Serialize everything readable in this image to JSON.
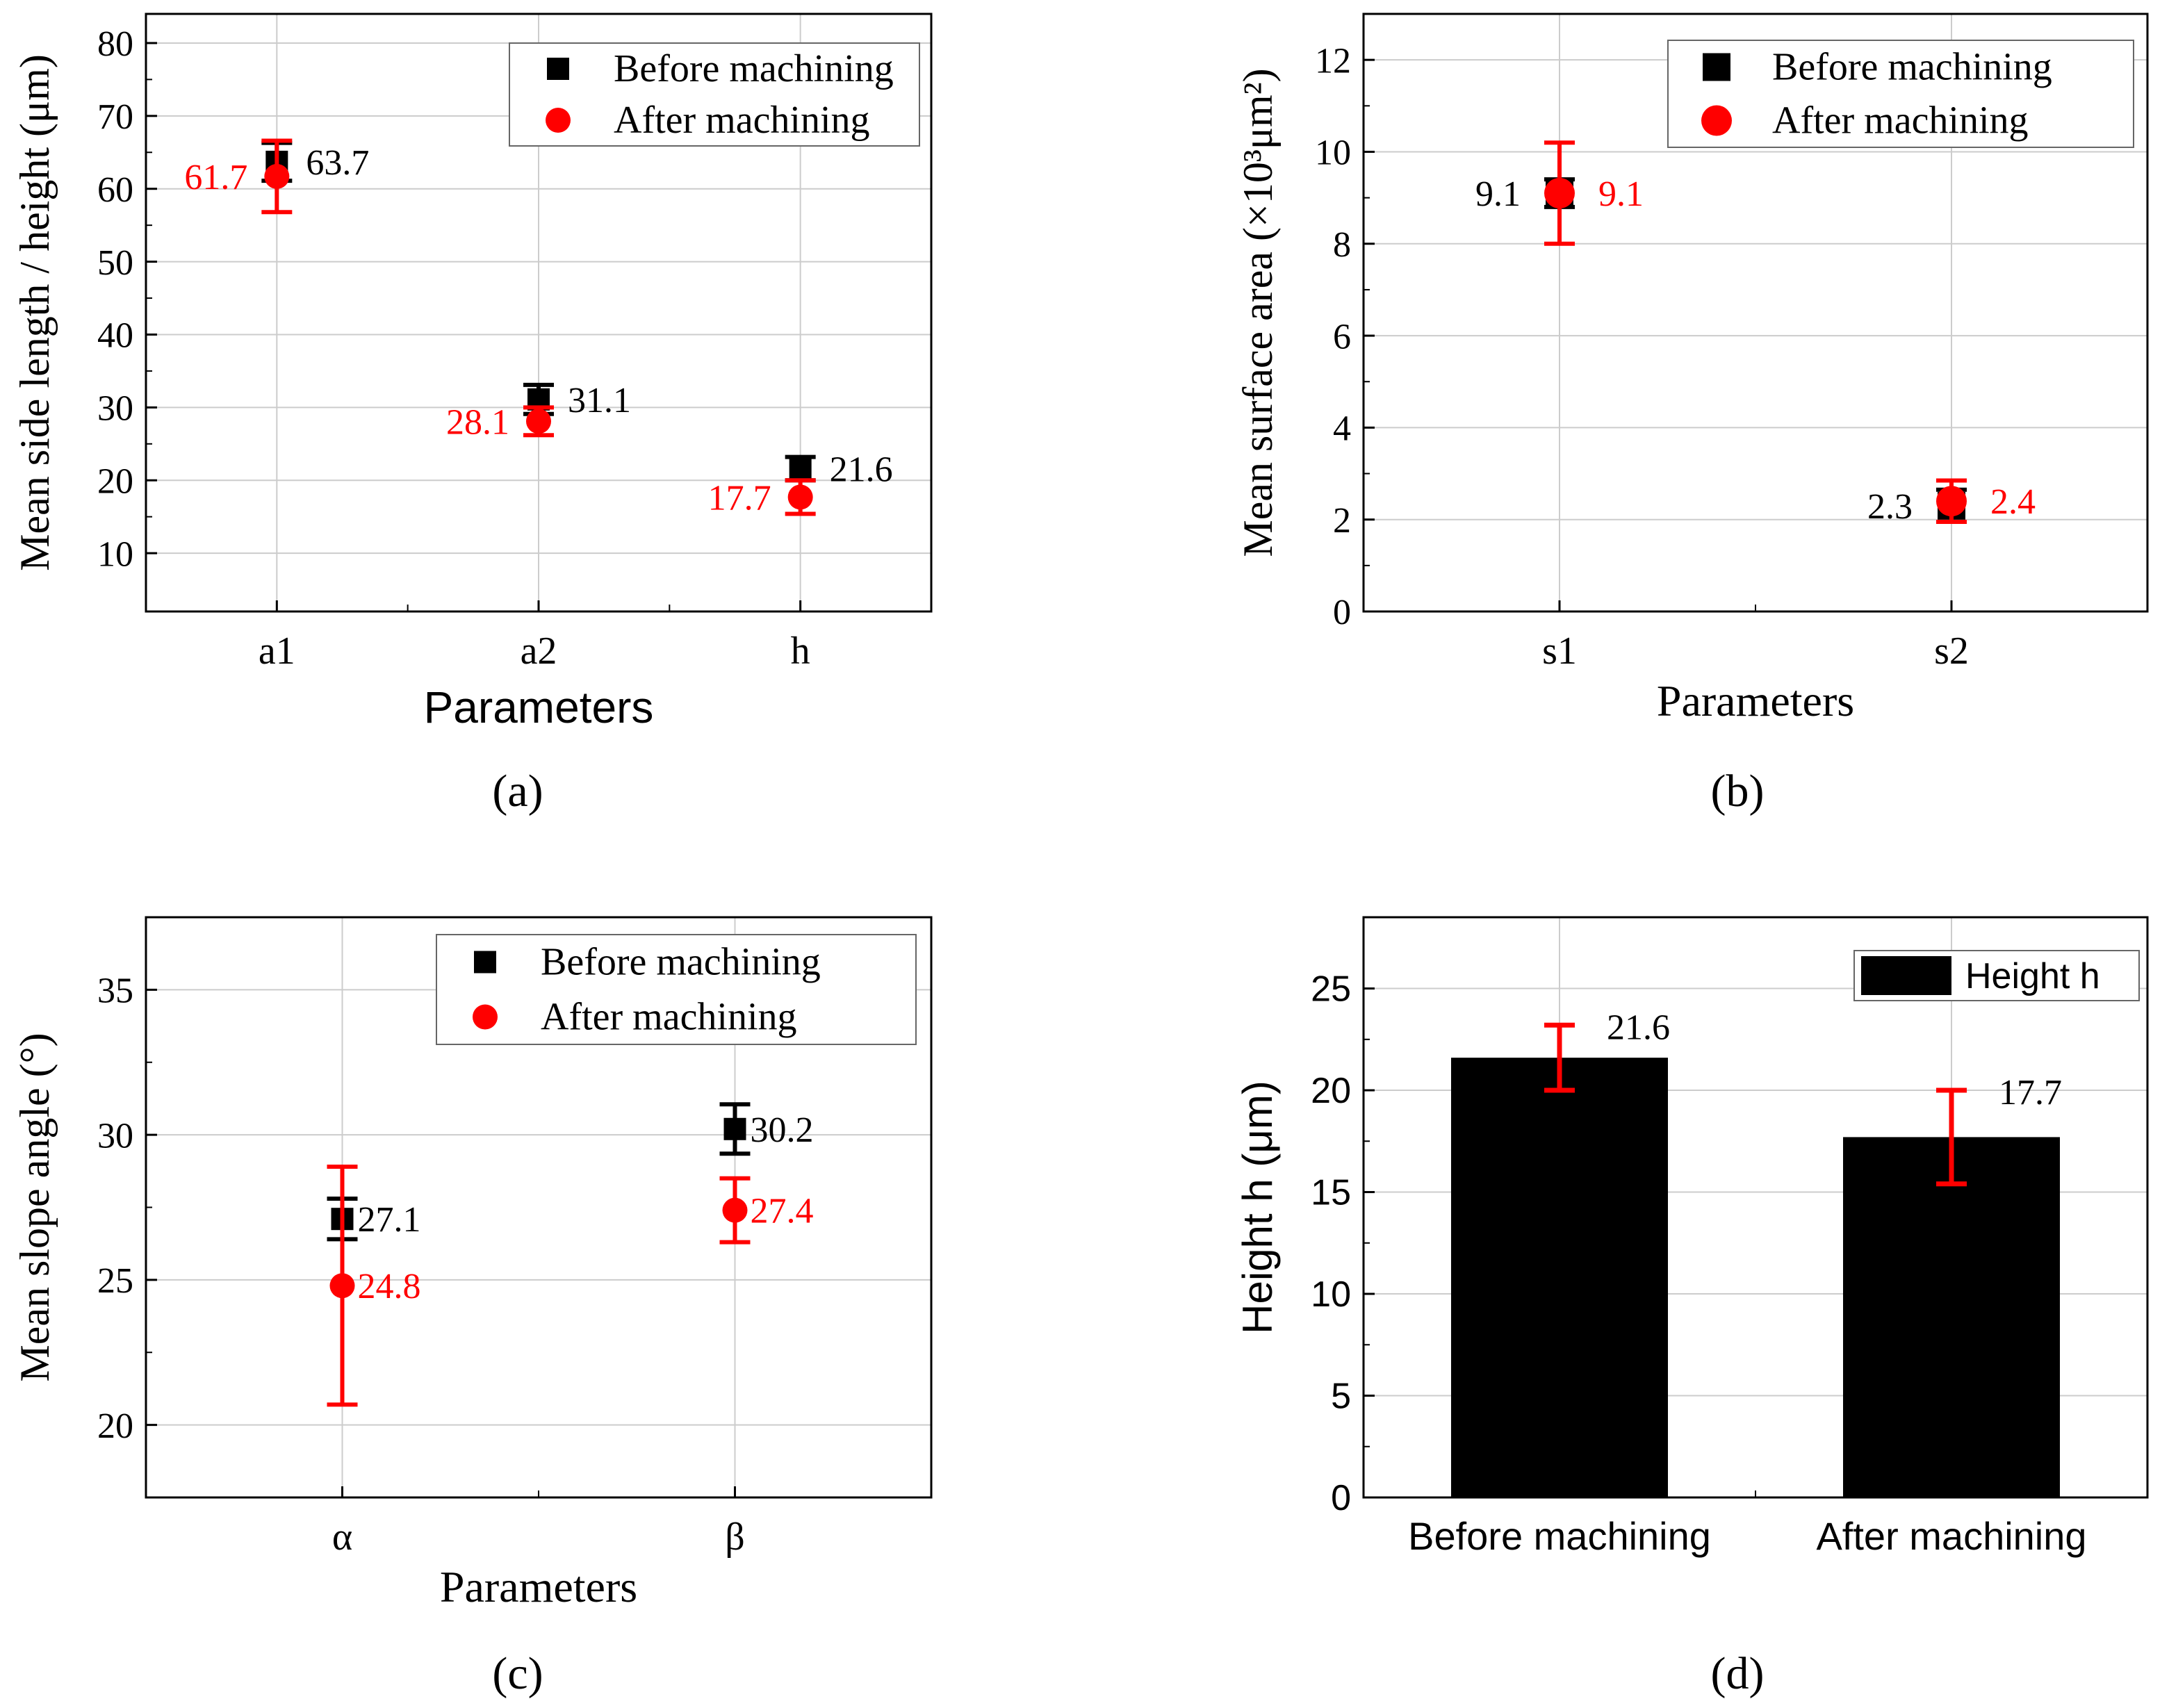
{
  "chart_data": [
    {
      "id": "a",
      "type": "scatter",
      "caption": "(a)",
      "xlabel": "Parameters",
      "ylabel": "Mean side length / height (μm)",
      "categories": [
        "a1",
        "a2",
        "h"
      ],
      "ylim": [
        2,
        84
      ],
      "yticks": [
        10,
        20,
        30,
        40,
        50,
        60,
        70,
        80
      ],
      "grid": true,
      "legend_position": "top-right",
      "series": [
        {
          "name": "Before machining",
          "marker": "square",
          "color": "#000000",
          "values": [
            63.7,
            31.1,
            21.6
          ],
          "errors": [
            2.6,
            2.0,
            1.6
          ],
          "labels": [
            "63.7",
            "31.1",
            "21.6"
          ],
          "label_side": "right"
        },
        {
          "name": "After machining",
          "marker": "circle",
          "color": "#ff0000",
          "values": [
            61.7,
            28.1,
            17.7
          ],
          "errors": [
            4.9,
            1.9,
            2.3
          ],
          "labels": [
            "61.7",
            "28.1",
            "17.7"
          ],
          "label_side": "left"
        }
      ]
    },
    {
      "id": "b",
      "type": "scatter",
      "caption": "(b)",
      "xlabel": "Parameters",
      "ylabel": "Mean surface area (×10³μm²)",
      "categories": [
        "s1",
        "s2"
      ],
      "ylim": [
        0,
        13
      ],
      "yticks": [
        0,
        2,
        4,
        6,
        8,
        10,
        12
      ],
      "grid": true,
      "legend_position": "top-right",
      "series": [
        {
          "name": "Before machining",
          "marker": "square",
          "color": "#000000",
          "values": [
            9.1,
            2.3
          ],
          "errors": [
            0.3,
            0.35
          ],
          "labels": [
            "9.1",
            "2.3"
          ],
          "label_side": "left"
        },
        {
          "name": "After machining",
          "marker": "circle",
          "color": "#ff0000",
          "values": [
            9.1,
            2.4
          ],
          "errors": [
            1.1,
            0.45
          ],
          "labels": [
            "9.1",
            "2.4"
          ],
          "label_side": "right"
        }
      ]
    },
    {
      "id": "c",
      "type": "scatter",
      "caption": "(c)",
      "xlabel": "Parameters",
      "ylabel": "Mean slope angle (°)",
      "categories": [
        "α",
        "β"
      ],
      "ylim": [
        17.5,
        37.5
      ],
      "yticks": [
        20,
        25,
        30,
        35
      ],
      "grid": true,
      "legend_position": "top-right",
      "series": [
        {
          "name": "Before machining",
          "marker": "square",
          "color": "#000000",
          "values": [
            27.1,
            30.2
          ],
          "errors": [
            0.7,
            0.85
          ],
          "labels": [
            "27.1",
            "30.2"
          ],
          "label_side": "right"
        },
        {
          "name": "After machining",
          "marker": "circle",
          "color": "#ff0000",
          "values": [
            24.8,
            27.4
          ],
          "errors": [
            4.1,
            1.1
          ],
          "labels": [
            "24.8",
            "27.4"
          ],
          "label_side": "right"
        }
      ]
    },
    {
      "id": "d",
      "type": "bar",
      "caption": "(d)",
      "xlabel": "",
      "ylabel": "Height h (μm)",
      "categories": [
        "Before machining",
        "After machining"
      ],
      "ylim": [
        0,
        28.5
      ],
      "yticks": [
        0,
        5,
        10,
        15,
        20,
        25
      ],
      "grid": true,
      "legend_position": "top-right",
      "series": [
        {
          "name": "Height h",
          "color": "#000000",
          "error_color": "#ff0000",
          "values": [
            21.6,
            17.7
          ],
          "errors": [
            1.6,
            2.3
          ],
          "labels": [
            "21.6",
            "17.7"
          ]
        }
      ]
    }
  ]
}
